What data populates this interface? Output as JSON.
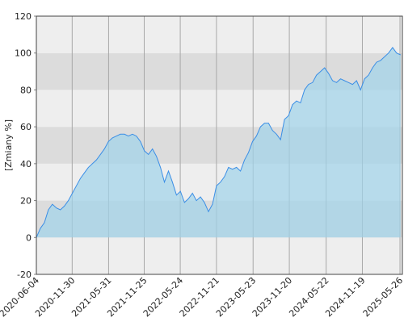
{
  "chart_data": {
    "type": "area",
    "y_label": "[Zmiany %]",
    "xlim": [
      "2020-06-04",
      "2025-06-07"
    ],
    "xticks": [
      "2020-06-04",
      "2020-11-30",
      "2021-05-31",
      "2021-11-25",
      "2022-05-24",
      "2022-11-21",
      "2023-05-23",
      "2023-11-20",
      "2024-05-22",
      "2024-11-19",
      "2025-05-26"
    ],
    "ylim": [
      -20,
      120
    ],
    "yticks": [
      -20,
      0,
      20,
      40,
      60,
      80,
      100,
      120
    ],
    "grid": true,
    "band_colors": [
      "#eeeeee",
      "#dcdcdc"
    ],
    "series": [
      {
        "name": "Zmiany",
        "color": "#3a8ee6",
        "fill": "#9fd3ea",
        "x": [
          "2020-06-04",
          "2020-06-24",
          "2020-07-14",
          "2020-08-03",
          "2020-08-23",
          "2020-09-12",
          "2020-10-02",
          "2020-10-22",
          "2020-11-11",
          "2020-12-01",
          "2020-12-21",
          "2021-01-10",
          "2021-01-30",
          "2021-02-19",
          "2021-03-11",
          "2021-03-31",
          "2021-04-20",
          "2021-05-10",
          "2021-05-30",
          "2021-06-19",
          "2021-07-09",
          "2021-07-29",
          "2021-08-18",
          "2021-09-07",
          "2021-09-27",
          "2021-10-17",
          "2021-11-06",
          "2021-11-26",
          "2021-12-16",
          "2022-01-05",
          "2022-01-25",
          "2022-02-14",
          "2022-03-06",
          "2022-03-26",
          "2022-04-15",
          "2022-05-05",
          "2022-05-25",
          "2022-06-14",
          "2022-07-04",
          "2022-07-24",
          "2022-08-13",
          "2022-09-02",
          "2022-09-22",
          "2022-10-12",
          "2022-11-01",
          "2022-11-21",
          "2022-12-11",
          "2022-12-31",
          "2023-01-20",
          "2023-02-09",
          "2023-03-01",
          "2023-03-21",
          "2023-04-10",
          "2023-04-30",
          "2023-05-20",
          "2023-06-09",
          "2023-06-29",
          "2023-07-19",
          "2023-08-08",
          "2023-08-28",
          "2023-09-17",
          "2023-10-07",
          "2023-10-27",
          "2023-11-16",
          "2023-12-06",
          "2023-12-26",
          "2024-01-15",
          "2024-02-04",
          "2024-02-24",
          "2024-03-15",
          "2024-04-04",
          "2024-04-24",
          "2024-05-14",
          "2024-06-03",
          "2024-06-23",
          "2024-07-13",
          "2024-08-02",
          "2024-08-22",
          "2024-09-11",
          "2024-10-01",
          "2024-10-21",
          "2024-11-10",
          "2024-11-30",
          "2024-12-20",
          "2025-01-09",
          "2025-01-29",
          "2025-02-18",
          "2025-03-10",
          "2025-03-30",
          "2025-04-19",
          "2025-05-09",
          "2025-05-29"
        ],
        "values": [
          0,
          5,
          8,
          15,
          18,
          16,
          15,
          17,
          20,
          24,
          28,
          32,
          35,
          38,
          40,
          42,
          45,
          48,
          52,
          54,
          55,
          56,
          56,
          55,
          56,
          55,
          52,
          47,
          45,
          48,
          44,
          38,
          30,
          36,
          30,
          23,
          25,
          19,
          21,
          24,
          20,
          22,
          19,
          14,
          18,
          28,
          30,
          33,
          38,
          37,
          38,
          36,
          42,
          46,
          52,
          55,
          60,
          62,
          62,
          58,
          56,
          53,
          64,
          66,
          72,
          74,
          73,
          80,
          83,
          84,
          88,
          90,
          92,
          89,
          85,
          84,
          86,
          85,
          84,
          83,
          85,
          80,
          86,
          88,
          92,
          95,
          96,
          98,
          100,
          103,
          100,
          99
        ]
      }
    ]
  }
}
